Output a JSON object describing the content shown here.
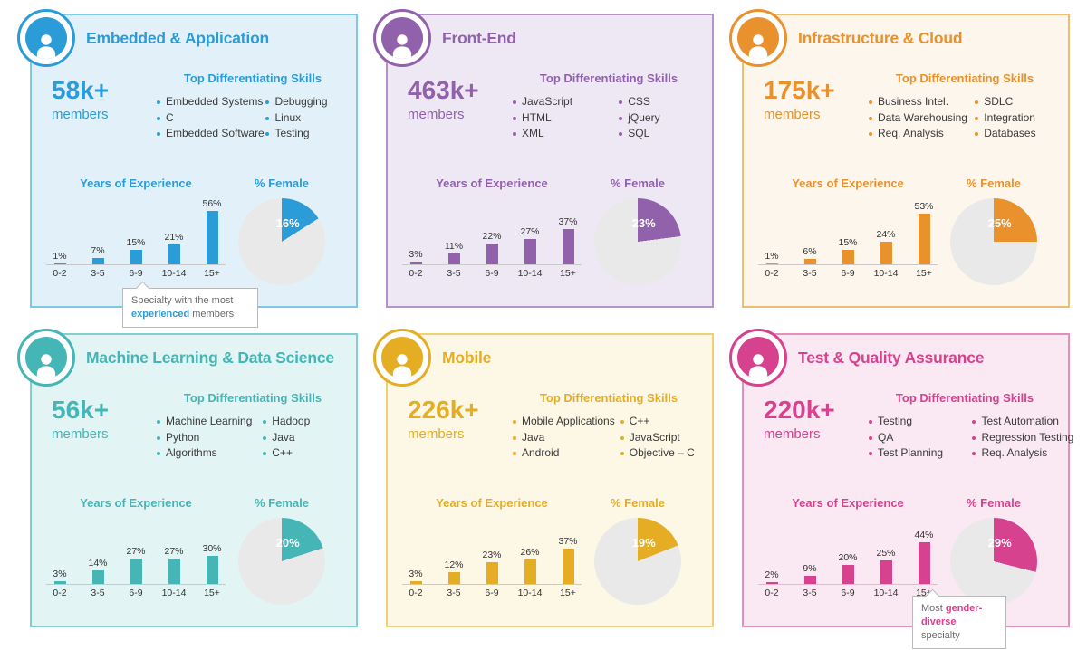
{
  "panels": [
    {
      "title": "Embedded & Application",
      "members_count": "58k+",
      "members_label": "members",
      "skills_title": "Top Differentiating Skills",
      "skills_col1": [
        "Embedded Systems",
        "C",
        "Embedded Software"
      ],
      "skills_col2": [
        "Debugging",
        "Linux",
        "Testing"
      ],
      "experience_title": "Years of Experience",
      "female_title": "% Female",
      "colors": {
        "accent": "#2b9cd8",
        "border": "#7ec8e8",
        "background": "#e2f1f9"
      },
      "callout": {
        "prefix": "Specialty with the most ",
        "bold": "experienced",
        "suffix": " members"
      }
    },
    {
      "title": "Front-End",
      "members_count": "463k+",
      "members_label": "members",
      "skills_title": "Top Differentiating Skills",
      "skills_col1": [
        "JavaScript",
        "HTML",
        "XML"
      ],
      "skills_col2": [
        "CSS",
        "jQuery",
        "SQL"
      ],
      "experience_title": "Years of Experience",
      "female_title": "% Female",
      "colors": {
        "accent": "#9161ab",
        "border": "#b493c9",
        "background": "#eee8f4"
      }
    },
    {
      "title": "Infrastructure & Cloud",
      "members_count": "175k+",
      "members_label": "members",
      "skills_title": "Top Differentiating Skills",
      "skills_col1": [
        "Business Intel.",
        "Data Warehousing",
        "Req. Analysis"
      ],
      "skills_col2": [
        "SDLC",
        "Integration",
        "Databases"
      ],
      "experience_title": "Years of Experience",
      "female_title": "% Female",
      "colors": {
        "accent": "#e8912d",
        "border": "#f0bc72",
        "background": "#fdf6ec"
      }
    },
    {
      "title": "Machine Learning & Data Science",
      "members_count": "56k+",
      "members_label": "members",
      "skills_title": "Top Differentiating Skills",
      "skills_col1": [
        "Machine Learning",
        "Python",
        "Algorithms"
      ],
      "skills_col2": [
        "Hadoop",
        "Java",
        "C++"
      ],
      "experience_title": "Years of Experience",
      "female_title": "% Female",
      "colors": {
        "accent": "#45b5b5",
        "border": "#83cfcd",
        "background": "#e3f4f4"
      }
    },
    {
      "title": "Mobile",
      "members_count": "226k+",
      "members_label": "members",
      "skills_title": "Top Differentiating Skills",
      "skills_col1": [
        "Mobile Applications",
        "Java",
        "Android"
      ],
      "skills_col2": [
        "C++",
        "JavaScript",
        "Objective – C"
      ],
      "experience_title": "Years of Experience",
      "female_title": "% Female",
      "colors": {
        "accent": "#e4ad24",
        "border": "#efd173",
        "background": "#fdf8e6"
      }
    },
    {
      "title": "Test & Quality Assurance",
      "members_count": "220k+",
      "members_label": "members",
      "skills_title": "Top Differentiating Skills",
      "skills_col1": [
        "Testing",
        "QA",
        "Test Planning"
      ],
      "skills_col2": [
        "Test Automation",
        "Regression Testing",
        "Req. Analysis"
      ],
      "experience_title": "Years of Experience",
      "female_title": "% Female",
      "colors": {
        "accent": "#d6428e",
        "border": "#e68fbd",
        "background": "#fae8f2"
      },
      "callout": {
        "prefix": "Most ",
        "bold": "gender-diverse",
        "suffix": " specialty"
      }
    }
  ],
  "chart_data": [
    {
      "type": "bar",
      "panel": "Embedded & Application",
      "title": "Years of Experience",
      "categories": [
        "0-2",
        "3-5",
        "6-9",
        "10-14",
        "15+"
      ],
      "values": [
        1,
        7,
        15,
        21,
        56
      ],
      "value_labels": [
        "1%",
        "7%",
        "15%",
        "21%",
        "56%"
      ],
      "ylim": [
        0,
        60
      ]
    },
    {
      "type": "pie",
      "panel": "Embedded & Application",
      "title": "% Female",
      "slices": [
        {
          "label": "Female",
          "value": 16
        },
        {
          "label": "Other",
          "value": 84
        }
      ],
      "display": "16%"
    },
    {
      "type": "bar",
      "panel": "Front-End",
      "title": "Years of Experience",
      "categories": [
        "0-2",
        "3-5",
        "6-9",
        "10-14",
        "15+"
      ],
      "values": [
        3,
        11,
        22,
        27,
        37
      ],
      "value_labels": [
        "3%",
        "11%",
        "22%",
        "27%",
        "37%"
      ],
      "ylim": [
        0,
        60
      ]
    },
    {
      "type": "pie",
      "panel": "Front-End",
      "title": "% Female",
      "slices": [
        {
          "label": "Female",
          "value": 23
        },
        {
          "label": "Other",
          "value": 77
        }
      ],
      "display": "23%"
    },
    {
      "type": "bar",
      "panel": "Infrastructure & Cloud",
      "title": "Years of Experience",
      "categories": [
        "0-2",
        "3-5",
        "6-9",
        "10-14",
        "15+"
      ],
      "values": [
        1,
        6,
        15,
        24,
        53
      ],
      "value_labels": [
        "1%",
        "6%",
        "15%",
        "24%",
        "53%"
      ],
      "ylim": [
        0,
        60
      ]
    },
    {
      "type": "pie",
      "panel": "Infrastructure & Cloud",
      "title": "% Female",
      "slices": [
        {
          "label": "Female",
          "value": 25
        },
        {
          "label": "Other",
          "value": 75
        }
      ],
      "display": "25%"
    },
    {
      "type": "bar",
      "panel": "Machine Learning & Data Science",
      "title": "Years of Experience",
      "categories": [
        "0-2",
        "3-5",
        "6-9",
        "10-14",
        "15+"
      ],
      "values": [
        3,
        14,
        27,
        27,
        30
      ],
      "value_labels": [
        "3%",
        "14%",
        "27%",
        "27%",
        "30%"
      ],
      "ylim": [
        0,
        60
      ]
    },
    {
      "type": "pie",
      "panel": "Machine Learning & Data Science",
      "title": "% Female",
      "slices": [
        {
          "label": "Female",
          "value": 20
        },
        {
          "label": "Other",
          "value": 80
        }
      ],
      "display": "20%"
    },
    {
      "type": "bar",
      "panel": "Mobile",
      "title": "Years of Experience",
      "categories": [
        "0-2",
        "3-5",
        "6-9",
        "10-14",
        "15+"
      ],
      "values": [
        3,
        12,
        23,
        26,
        37
      ],
      "value_labels": [
        "3%",
        "12%",
        "23%",
        "26%",
        "37%"
      ],
      "ylim": [
        0,
        60
      ]
    },
    {
      "type": "pie",
      "panel": "Mobile",
      "title": "% Female",
      "slices": [
        {
          "label": "Female",
          "value": 19
        },
        {
          "label": "Other",
          "value": 81
        }
      ],
      "display": "19%"
    },
    {
      "type": "bar",
      "panel": "Test & Quality Assurance",
      "title": "Years of Experience",
      "categories": [
        "0-2",
        "3-5",
        "6-9",
        "10-14",
        "15+"
      ],
      "values": [
        2,
        9,
        20,
        25,
        44
      ],
      "value_labels": [
        "2%",
        "9%",
        "20%",
        "25%",
        "44%"
      ],
      "ylim": [
        0,
        60
      ]
    },
    {
      "type": "pie",
      "panel": "Test & Quality Assurance",
      "title": "% Female",
      "slices": [
        {
          "label": "Female",
          "value": 29
        },
        {
          "label": "Other",
          "value": 71
        }
      ],
      "display": "29%"
    }
  ]
}
